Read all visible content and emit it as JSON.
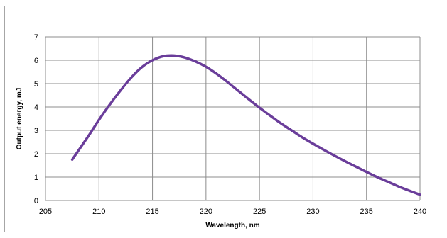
{
  "chart_data": {
    "type": "line",
    "title": "",
    "xlabel": "Wavelength, nm",
    "ylabel": "Output  energy, mJ",
    "xlim": [
      205,
      240
    ],
    "ylim": [
      0,
      7
    ],
    "xticks": [
      205,
      210,
      215,
      220,
      225,
      230,
      235,
      240
    ],
    "yticks": [
      0,
      1,
      2,
      3,
      4,
      5,
      6,
      7
    ],
    "grid": true,
    "legend": "none",
    "series": [
      {
        "color": "#6a3d9a",
        "x": [
          207.5,
          209,
          210,
          211,
          212,
          213,
          214,
          215,
          216,
          217,
          218,
          219,
          220,
          221,
          222,
          223,
          224,
          225,
          226,
          227,
          228,
          229,
          230,
          231,
          232,
          233,
          234,
          235,
          236,
          237,
          238,
          239,
          240
        ],
        "y": [
          1.75,
          2.75,
          3.45,
          4.1,
          4.7,
          5.25,
          5.7,
          6.0,
          6.17,
          6.2,
          6.12,
          5.95,
          5.72,
          5.42,
          5.07,
          4.7,
          4.33,
          3.97,
          3.63,
          3.3,
          3.0,
          2.7,
          2.43,
          2.17,
          1.92,
          1.68,
          1.45,
          1.22,
          1.0,
          0.8,
          0.6,
          0.42,
          0.25
        ]
      }
    ]
  }
}
